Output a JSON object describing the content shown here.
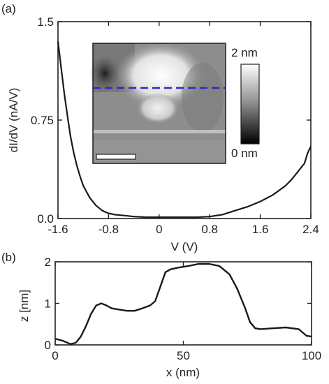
{
  "chart_data": [
    {
      "panel": "(a)",
      "type": "line",
      "ylabel": "dI/dV (nA/V)",
      "xlabel": "V (V)",
      "xlim": [
        -1.6,
        2.4
      ],
      "ylim": [
        0,
        1.5
      ],
      "xticks": [
        "-1.6",
        "-0.8",
        "0",
        "0.8",
        "1.6",
        "2.4"
      ],
      "yticks": [
        "0.0",
        "0.75",
        "1.5"
      ],
      "x": [
        -1.6,
        -1.55,
        -1.5,
        -1.45,
        -1.4,
        -1.35,
        -1.3,
        -1.25,
        -1.2,
        -1.1,
        -1.0,
        -0.9,
        -0.8,
        -0.7,
        -0.6,
        -0.5,
        -0.4,
        -0.2,
        0.0,
        0.2,
        0.4,
        0.6,
        0.8,
        1.0,
        1.2,
        1.4,
        1.6,
        1.8,
        2.0,
        2.1,
        2.2,
        2.3,
        2.35,
        2.4
      ],
      "y": [
        1.35,
        1.15,
        0.95,
        0.78,
        0.62,
        0.5,
        0.4,
        0.32,
        0.25,
        0.16,
        0.1,
        0.06,
        0.04,
        0.03,
        0.025,
        0.02,
        0.015,
        0.01,
        0.01,
        0.01,
        0.01,
        0.01,
        0.015,
        0.03,
        0.06,
        0.09,
        0.13,
        0.18,
        0.25,
        0.3,
        0.36,
        0.42,
        0.5,
        0.55
      ],
      "inset": {
        "type": "heatmap",
        "colorbar_labels": [
          "2 nm",
          "0 nm"
        ],
        "colorbar_range_nm": [
          0,
          2
        ],
        "line_profile_color": "#2b2bbf"
      }
    },
    {
      "panel": "(b)",
      "type": "line",
      "ylabel": "z [nm]",
      "xlabel": "x (nm)",
      "xlim": [
        0,
        100
      ],
      "ylim": [
        0,
        2
      ],
      "xticks": [
        "0",
        "50",
        "100"
      ],
      "yticks": [
        "0",
        "1",
        "2"
      ],
      "x": [
        0,
        3,
        6,
        8,
        10,
        12,
        14,
        16,
        18,
        20,
        22,
        25,
        28,
        31,
        34,
        37,
        39,
        41,
        43,
        45,
        48,
        52,
        56,
        60,
        64,
        68,
        71,
        74,
        76,
        78,
        80,
        85,
        90,
        95,
        98,
        100
      ],
      "y": [
        0.15,
        0.1,
        0.02,
        0.05,
        0.2,
        0.45,
        0.75,
        0.95,
        1.0,
        0.95,
        0.88,
        0.85,
        0.82,
        0.82,
        0.88,
        0.95,
        1.05,
        1.4,
        1.75,
        1.82,
        1.86,
        1.9,
        1.95,
        1.95,
        1.9,
        1.7,
        1.35,
        0.9,
        0.55,
        0.4,
        0.38,
        0.4,
        0.42,
        0.38,
        0.22,
        0.2
      ]
    }
  ]
}
